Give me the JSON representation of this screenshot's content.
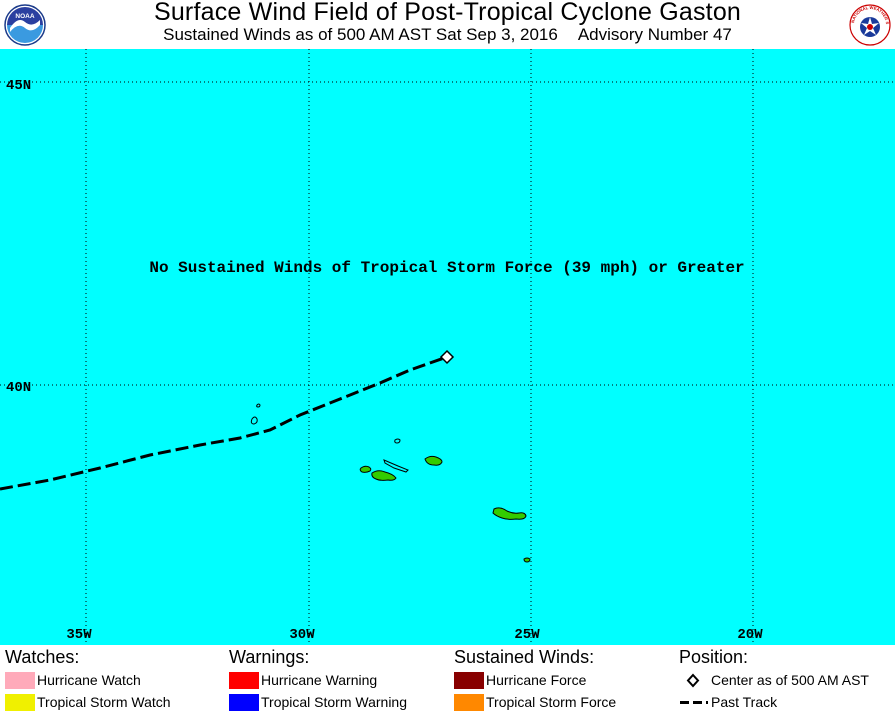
{
  "header": {
    "title": "Surface Wind Field of Post-Tropical Cyclone Gaston",
    "subtitle_time": "Sustained Winds as of 500 AM AST Sat Sep 3, 2016",
    "subtitle_advisory": "Advisory Number 47",
    "left_logo": {
      "text": "NOAA"
    },
    "right_logo": {
      "text": "NATIONAL WEATHER SERVICE"
    }
  },
  "map": {
    "background_color": "#00ffff",
    "land_color": "#33cc00",
    "notice": "No Sustained Winds of Tropical Storm Force (39 mph) or Greater",
    "latitude_labels": [
      "45N",
      "40N"
    ],
    "longitude_labels": [
      "35W",
      "30W",
      "25W",
      "20W"
    ],
    "center_position_note": "storm center near 40.7N 26.8W"
  },
  "legend": {
    "watches": {
      "heading": "Watches:",
      "items": [
        {
          "label": "Hurricane Watch",
          "color": "#ffaaba"
        },
        {
          "label": "Tropical Storm Watch",
          "color": "#f0f000"
        }
      ]
    },
    "warnings": {
      "heading": "Warnings:",
      "items": [
        {
          "label": "Hurricane Warning",
          "color": "#ff0000"
        },
        {
          "label": "Tropical Storm Warning",
          "color": "#0000ff"
        }
      ]
    },
    "winds": {
      "heading": "Sustained Winds:",
      "items": [
        {
          "label": "Hurricane Force",
          "color": "#880000"
        },
        {
          "label": "Tropical Storm Force",
          "color": "#ff8800"
        }
      ]
    },
    "position": {
      "heading": "Position:",
      "center_label": "Center as of 500 AM AST",
      "track_label": "Past Track"
    }
  }
}
